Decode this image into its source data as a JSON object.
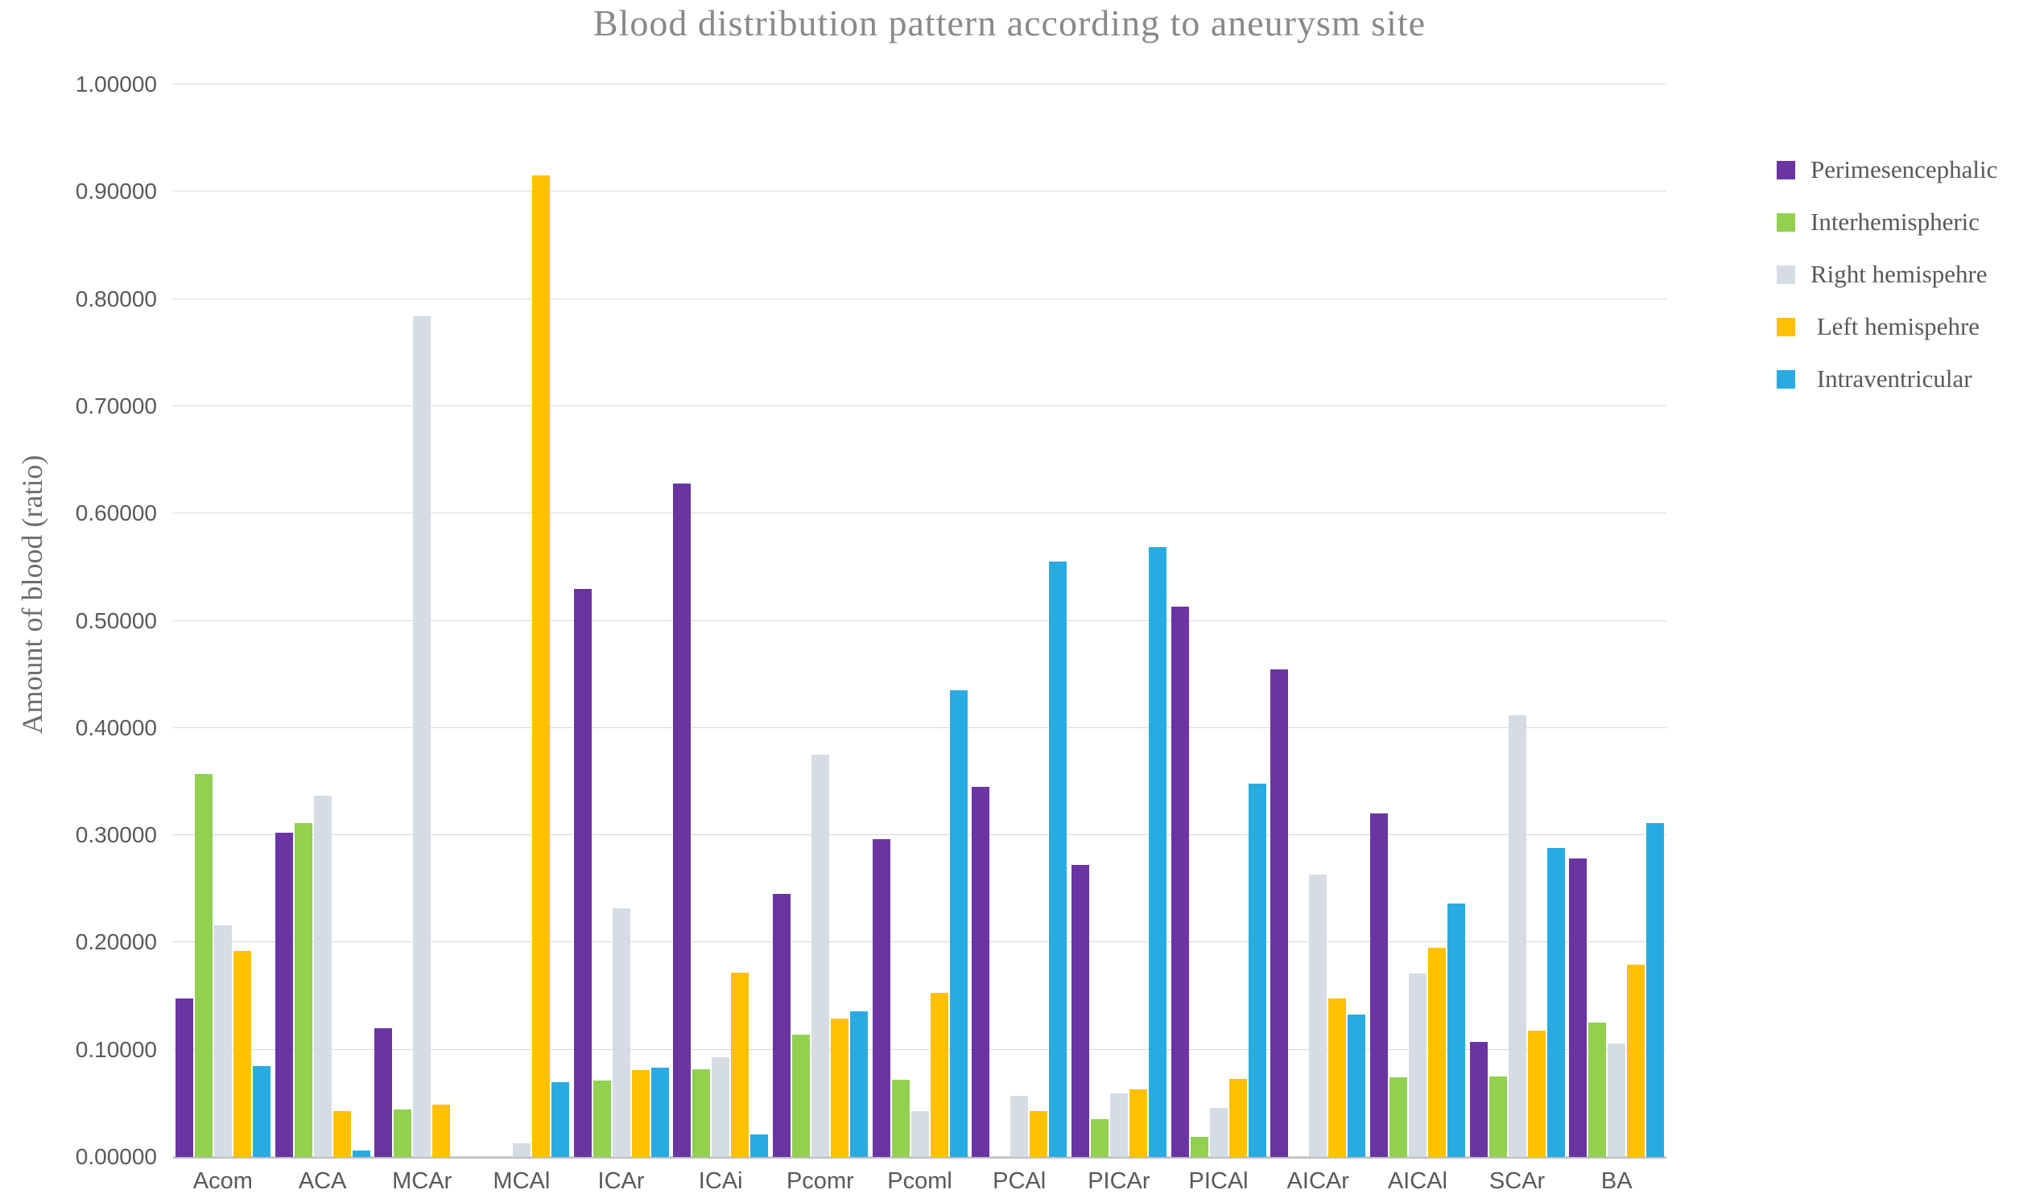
{
  "title": "Blood distribution pattern according to aneurysm site",
  "y_axis_title": "Amount of blood (ratio)",
  "chart_data": {
    "type": "bar",
    "title": "Blood distribution pattern according to aneurysm site",
    "xlabel": "",
    "ylabel": "Amount of blood (ratio)",
    "ylim": [
      0,
      1
    ],
    "ytick_step": 0.1,
    "ytick_decimals": 5,
    "grid": true,
    "legend_position": "right",
    "categories": [
      "Acom",
      "ACA",
      "MCAr",
      "MCAl",
      "ICAr",
      "ICAi",
      "Pcomr",
      "Pcoml",
      "PCAl",
      "PICAr",
      "PICAl",
      "AICAr",
      "AICAl",
      "SCAr",
      "BA"
    ],
    "series": [
      {
        "name": "Perimesencephalic",
        "color": "#6a35a3",
        "values": [
          0.148,
          0.302,
          0.12,
          0.0,
          0.53,
          0.628,
          0.245,
          0.296,
          0.345,
          0.272,
          0.513,
          0.455,
          0.32,
          0.107,
          0.278
        ]
      },
      {
        "name": "Interhemispheric",
        "color": "#92d050",
        "values": [
          0.357,
          0.311,
          0.044,
          0.0,
          0.071,
          0.082,
          0.114,
          0.072,
          0.0,
          0.035,
          0.019,
          0.0,
          0.074,
          0.075,
          0.125
        ]
      },
      {
        "name": "Right hemispehre",
        "color": "#d6dce4",
        "values": [
          0.216,
          0.337,
          0.784,
          0.013,
          0.232,
          0.093,
          0.375,
          0.043,
          0.057,
          0.059,
          0.046,
          0.263,
          0.171,
          0.412,
          0.106
        ]
      },
      {
        "name": " Left hemispehre",
        "color": "#ffc000",
        "values": [
          0.192,
          0.043,
          0.049,
          0.915,
          0.081,
          0.172,
          0.129,
          0.153,
          0.043,
          0.063,
          0.073,
          0.148,
          0.195,
          0.118,
          0.179
        ]
      },
      {
        "name": " Intraventricular",
        "color": "#29abe2",
        "values": [
          0.085,
          0.006,
          0.0,
          0.07,
          0.083,
          0.021,
          0.136,
          0.435,
          0.555,
          0.569,
          0.348,
          0.133,
          0.236,
          0.288,
          0.311
        ]
      }
    ]
  },
  "style": {
    "gridline_color": "#d9d9d9",
    "axis_line_color": "#bfbfbf",
    "tick_label_color": "#595959",
    "title_color": "#898989"
  }
}
